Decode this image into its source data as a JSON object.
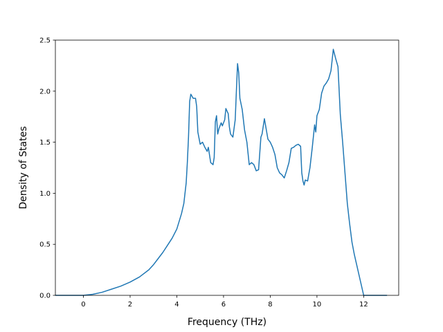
{
  "chart_data": {
    "type": "line",
    "title": "",
    "xlabel": "Frequency (THz)",
    "ylabel": "Density of States",
    "xlim": [
      -1.2,
      13.5
    ],
    "ylim": [
      0.0,
      2.5
    ],
    "xticks": [
      0,
      2,
      4,
      6,
      8,
      10,
      12
    ],
    "yticks": [
      0.0,
      0.5,
      1.0,
      1.5,
      2.0,
      2.5
    ],
    "xtick_labels": [
      "0",
      "2",
      "4",
      "6",
      "8",
      "10",
      "12"
    ],
    "ytick_labels": [
      "0.0",
      "0.5",
      "1.0",
      "1.5",
      "2.0",
      "2.5"
    ],
    "grid": false,
    "series_color": "#1f77b4",
    "series": [
      {
        "x": [
          -1.2,
          -0.5,
          0.0,
          0.4,
          0.8,
          1.2,
          1.6,
          2.0,
          2.4,
          2.8,
          3.0,
          3.2,
          3.4,
          3.6,
          3.8,
          4.0,
          4.2,
          4.3,
          4.4,
          4.45,
          4.5,
          4.55,
          4.6,
          4.7,
          4.8,
          4.85,
          4.9,
          5.0,
          5.1,
          5.2,
          5.3,
          5.35,
          5.45,
          5.55,
          5.6,
          5.65,
          5.7,
          5.75,
          5.8,
          5.9,
          5.95,
          6.05,
          6.1,
          6.2,
          6.25,
          6.3,
          6.4,
          6.5,
          6.55,
          6.6,
          6.65,
          6.7,
          6.8,
          6.9,
          7.0,
          7.1,
          7.2,
          7.3,
          7.4,
          7.5,
          7.6,
          7.65,
          7.75,
          7.9,
          8.0,
          8.1,
          8.2,
          8.3,
          8.4,
          8.5,
          8.6,
          8.7,
          8.8,
          8.9,
          9.0,
          9.1,
          9.2,
          9.3,
          9.35,
          9.4,
          9.45,
          9.5,
          9.6,
          9.7,
          9.8,
          9.9,
          9.95,
          10.0,
          10.1,
          10.2,
          10.3,
          10.4,
          10.5,
          10.6,
          10.7,
          10.8,
          10.9,
          11.0,
          11.1,
          11.2,
          11.3,
          11.4,
          11.5,
          11.6,
          11.7,
          11.8,
          12.0,
          12.5,
          13.0
        ],
        "y": [
          0.0,
          0.0,
          0.0,
          0.01,
          0.03,
          0.06,
          0.09,
          0.13,
          0.18,
          0.25,
          0.3,
          0.36,
          0.42,
          0.49,
          0.56,
          0.65,
          0.8,
          0.9,
          1.1,
          1.3,
          1.55,
          1.9,
          1.97,
          1.93,
          1.93,
          1.85,
          1.6,
          1.48,
          1.5,
          1.45,
          1.41,
          1.45,
          1.3,
          1.28,
          1.35,
          1.7,
          1.76,
          1.58,
          1.63,
          1.69,
          1.66,
          1.72,
          1.83,
          1.78,
          1.65,
          1.58,
          1.55,
          1.72,
          2.0,
          2.27,
          2.18,
          1.93,
          1.82,
          1.62,
          1.5,
          1.28,
          1.3,
          1.28,
          1.22,
          1.23,
          1.55,
          1.58,
          1.73,
          1.53,
          1.5,
          1.45,
          1.38,
          1.25,
          1.2,
          1.18,
          1.15,
          1.22,
          1.3,
          1.44,
          1.45,
          1.47,
          1.48,
          1.46,
          1.2,
          1.12,
          1.08,
          1.13,
          1.12,
          1.25,
          1.45,
          1.67,
          1.6,
          1.76,
          1.82,
          1.98,
          2.05,
          2.08,
          2.12,
          2.2,
          2.41,
          2.32,
          2.24,
          1.77,
          1.5,
          1.2,
          0.9,
          0.7,
          0.52,
          0.4,
          0.3,
          0.2,
          0.0,
          0.0,
          0.0
        ]
      }
    ]
  }
}
